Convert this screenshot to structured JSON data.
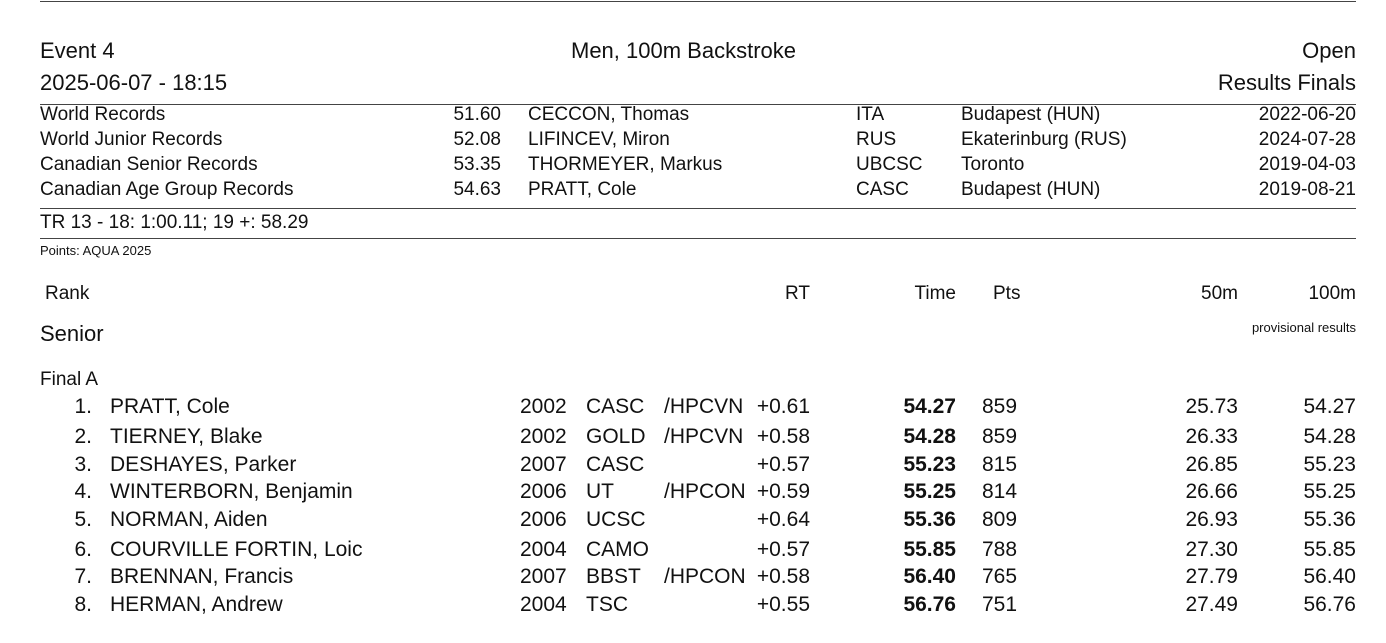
{
  "header": {
    "event": "Event 4",
    "title": "Men, 100m Backstroke",
    "category": "Open",
    "datetime": "2025-06-07 - 18:15",
    "results_type": "Results Finals"
  },
  "records": [
    {
      "label": "World Records",
      "time": "51.60",
      "name": "CECCON, Thomas",
      "club": "ITA",
      "place": "Budapest (HUN)",
      "date": "2022-06-20"
    },
    {
      "label": "World Junior Records",
      "time": "52.08",
      "name": "LIFINCEV, Miron",
      "club": "RUS",
      "place": "Ekaterinburg (RUS)",
      "date": "2024-07-28"
    },
    {
      "label": "Canadian Senior Records",
      "time": "53.35",
      "name": "THORMEYER, Markus",
      "club": "UBCSC",
      "place": "Toronto",
      "date": "2019-04-03"
    },
    {
      "label": "Canadian Age Group Records",
      "time": "54.63",
      "name": "PRATT, Cole",
      "club": "CASC",
      "place": "Budapest (HUN)",
      "date": "2019-08-21"
    }
  ],
  "tr_line": "TR 13 - 18: 1:00.11;  19 +: 58.29",
  "points_note": "Points: AQUA 2025",
  "columns": {
    "rank": "Rank",
    "rt": "RT",
    "time": "Time",
    "pts": "Pts",
    "split50": "50m",
    "split100": "100m"
  },
  "group": "Senior",
  "provisional": "provisional results",
  "final_label": "Final A",
  "results": [
    {
      "rank": "1.",
      "name": "PRATT, Cole",
      "yob": "2002",
      "club": "CASC",
      "note": "/HPCVN",
      "rt": "+0.61",
      "time": "54.27",
      "pts": "859",
      "split50": "25.73",
      "split100": "54.27"
    },
    {
      "rank": "2.",
      "name": "TIERNEY, Blake",
      "yob": "2002",
      "club": "GOLD",
      "note": "/HPCVN",
      "rt": "+0.58",
      "time": "54.28",
      "pts": "859",
      "split50": "26.33",
      "split100": "54.28"
    },
    {
      "rank": "3.",
      "name": "DESHAYES, Parker",
      "yob": "2007",
      "club": "CASC",
      "note": "",
      "rt": "+0.57",
      "time": "55.23",
      "pts": "815",
      "split50": "26.85",
      "split100": "55.23"
    },
    {
      "rank": "4.",
      "name": "WINTERBORN, Benjamin",
      "yob": "2006",
      "club": "UT",
      "note": "/HPCON",
      "rt": "+0.59",
      "time": "55.25",
      "pts": "814",
      "split50": "26.66",
      "split100": "55.25"
    },
    {
      "rank": "5.",
      "name": "NORMAN, Aiden",
      "yob": "2006",
      "club": "UCSC",
      "note": "",
      "rt": "+0.64",
      "time": "55.36",
      "pts": "809",
      "split50": "26.93",
      "split100": "55.36"
    },
    {
      "rank": "6.",
      "name": "COURVILLE FORTIN, Loic",
      "yob": "2004",
      "club": "CAMO",
      "note": "",
      "rt": "+0.57",
      "time": "55.85",
      "pts": "788",
      "split50": "27.30",
      "split100": "55.85"
    },
    {
      "rank": "7.",
      "name": "BRENNAN, Francis",
      "yob": "2007",
      "club": "BBST",
      "note": "/HPCON",
      "rt": "+0.58",
      "time": "56.40",
      "pts": "765",
      "split50": "27.79",
      "split100": "56.40"
    },
    {
      "rank": "8.",
      "name": "HERMAN, Andrew",
      "yob": "2004",
      "club": "TSC",
      "note": "",
      "rt": "+0.55",
      "time": "56.76",
      "pts": "751",
      "split50": "27.49",
      "split100": "56.76"
    }
  ]
}
